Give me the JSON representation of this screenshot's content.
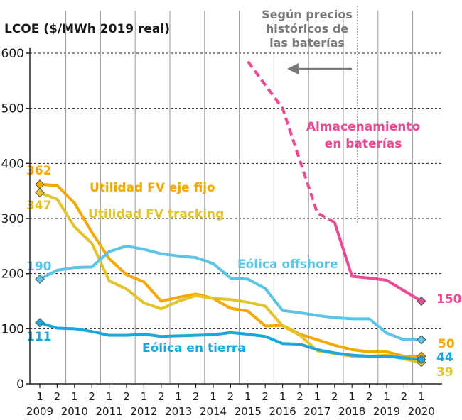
{
  "chart_data": {
    "type": "line",
    "title": "LCOE ($/MWh 2019 real)",
    "xlabel": "",
    "ylabel": "",
    "ylim": [
      0,
      600
    ],
    "yticks": [
      0,
      100,
      200,
      300,
      400,
      500,
      600
    ],
    "x_period_labels": [
      "1",
      "2",
      "1",
      "2",
      "1",
      "2",
      "1",
      "2",
      "1",
      "2",
      "1",
      "2",
      "1",
      "2",
      "1",
      "2",
      "1",
      "2",
      "1",
      "2",
      "1",
      "2",
      "1"
    ],
    "x_year_labels": [
      "2009",
      "2010",
      "2011",
      "2012",
      "2013",
      "2014",
      "2015",
      "2016",
      "2017",
      "2018",
      "2019",
      "2020"
    ],
    "grid": true,
    "annotation": {
      "lines": [
        "Según precios",
        "históricos de",
        "las baterías"
      ],
      "arrow_direction": "left"
    },
    "series": [
      {
        "name": "Utilidad FV eje fijo",
        "color": "#f5a800",
        "x": [
          "2009 1",
          "2009 2",
          "2010 1",
          "2010 2",
          "2011 1",
          "2011 2",
          "2012 1",
          "2012 2",
          "2013 1",
          "2013 2",
          "2014 1",
          "2014 2",
          "2015 1",
          "2015 2",
          "2016 1",
          "2016 2",
          "2017 1",
          "2017 2",
          "2018 1",
          "2018 2",
          "2019 1",
          "2019 2",
          "2020 1"
        ],
        "values": [
          362,
          360,
          328,
          275,
          227,
          198,
          185,
          150,
          157,
          163,
          155,
          137,
          132,
          105,
          106,
          90,
          80,
          70,
          62,
          58,
          58,
          50,
          50
        ],
        "end_label": "50"
      },
      {
        "name": "Utilidad FV tracking",
        "color": "#e3c42a",
        "x": [
          "2009 1",
          "2009 2",
          "2010 1",
          "2010 2",
          "2011 1",
          "2011 2",
          "2012 1",
          "2012 2",
          "2013 1",
          "2013 2",
          "2014 1",
          "2014 2",
          "2015 1",
          "2015 2",
          "2016 1",
          "2016 2",
          "2017 1",
          "2017 2",
          "2018 1",
          "2018 2",
          "2019 1",
          "2019 2",
          "2020 1"
        ],
        "values": [
          347,
          335,
          285,
          255,
          187,
          172,
          147,
          136,
          150,
          160,
          155,
          153,
          148,
          141,
          105,
          88,
          60,
          55,
          50,
          50,
          52,
          45,
          39
        ],
        "end_label": "39"
      },
      {
        "name": "Eólica offshore",
        "color": "#5cc4e5",
        "x": [
          "2009 1",
          "2009 2",
          "2010 1",
          "2010 2",
          "2011 1",
          "2011 2",
          "2012 1",
          "2012 2",
          "2013 1",
          "2013 2",
          "2014 1",
          "2014 2",
          "2015 1",
          "2015 2",
          "2016 1",
          "2016 2",
          "2017 1",
          "2017 2",
          "2018 1",
          "2018 2",
          "2019 1",
          "2019 2",
          "2020 1"
        ],
        "values": [
          190,
          206,
          211,
          212,
          240,
          250,
          244,
          236,
          232,
          229,
          218,
          192,
          190,
          173,
          133,
          129,
          124,
          120,
          118,
          118,
          92,
          80,
          80
        ],
        "end_label": ""
      },
      {
        "name": "Eólica en tierra",
        "color": "#1aa7dc",
        "x": [
          "2009 1",
          "2009 2",
          "2010 1",
          "2010 2",
          "2011 1",
          "2011 2",
          "2012 1",
          "2012 2",
          "2013 1",
          "2013 2",
          "2014 1",
          "2014 2",
          "2015 1",
          "2015 2",
          "2016 1",
          "2016 2",
          "2017 1",
          "2017 2",
          "2018 1",
          "2018 2",
          "2019 1",
          "2019 2",
          "2020 1"
        ],
        "values": [
          111,
          101,
          100,
          95,
          88,
          88,
          90,
          86,
          87,
          88,
          89,
          93,
          90,
          86,
          73,
          72,
          62,
          56,
          52,
          50,
          50,
          47,
          44
        ],
        "end_label": "44"
      },
      {
        "name": "Almacenamiento en baterías",
        "color": "#ea4b94",
        "x": [
          "2015 1",
          "2016 1",
          "2017 1",
          "2017 2",
          "2018 1",
          "2018 2",
          "2019 1",
          "2020 1"
        ],
        "values": [
          585,
          500,
          310,
          293,
          195,
          192,
          188,
          150
        ],
        "dashed_until_x": "2017 2",
        "end_label": "150"
      }
    ],
    "start_labels": [
      {
        "text": "362",
        "color": "#f5a800"
      },
      {
        "text": "347",
        "color": "#e3c42a"
      },
      {
        "text": "190",
        "color": "#5cc4e5"
      },
      {
        "text": "111",
        "color": "#1aa7dc"
      }
    ]
  }
}
